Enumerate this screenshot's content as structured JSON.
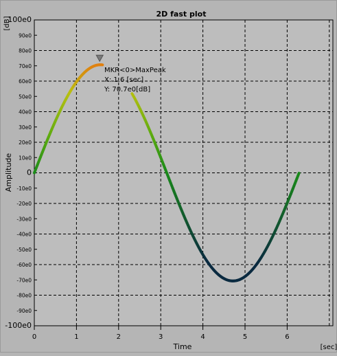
{
  "chart_data": {
    "type": "line",
    "title": "2D fast plot",
    "xlabel": "Time",
    "ylabel": "Amplitude",
    "x_unit": "[sec]",
    "y_unit": "[dB]",
    "xlim": [
      0,
      7
    ],
    "ylim": [
      -100,
      100
    ],
    "x_ticks": [
      "0",
      "1",
      "2",
      "3",
      "4",
      "5",
      "6"
    ],
    "y_ticks": [
      "100e0",
      "90e0",
      "80e0",
      "70e0",
      "60e0",
      "50e0",
      "40e0",
      "30e0",
      "20e0",
      "10e0",
      "0",
      "-10e0",
      "-20e0",
      "-30e0",
      "-40e0",
      "-50e0",
      "-60e0",
      "-70e0",
      "-80e0",
      "-90e0",
      "-100e0"
    ],
    "grid": true,
    "series": [
      {
        "function": "70.7 * sin(x)",
        "x_range": [
          0,
          6.28
        ],
        "color_map": [
          "#1a8a1a",
          "#5aaa10",
          "#b8c010",
          "#e08010",
          "#0d3a35",
          "#0a2a40"
        ]
      }
    ],
    "marker": {
      "label_line1": "MKR<0>MaxPeak",
      "label_line2": "X: 1.6 [sec]",
      "label_line3": "Y: 70.7e0[dB]",
      "x": 1.6,
      "y": 70.7
    }
  }
}
